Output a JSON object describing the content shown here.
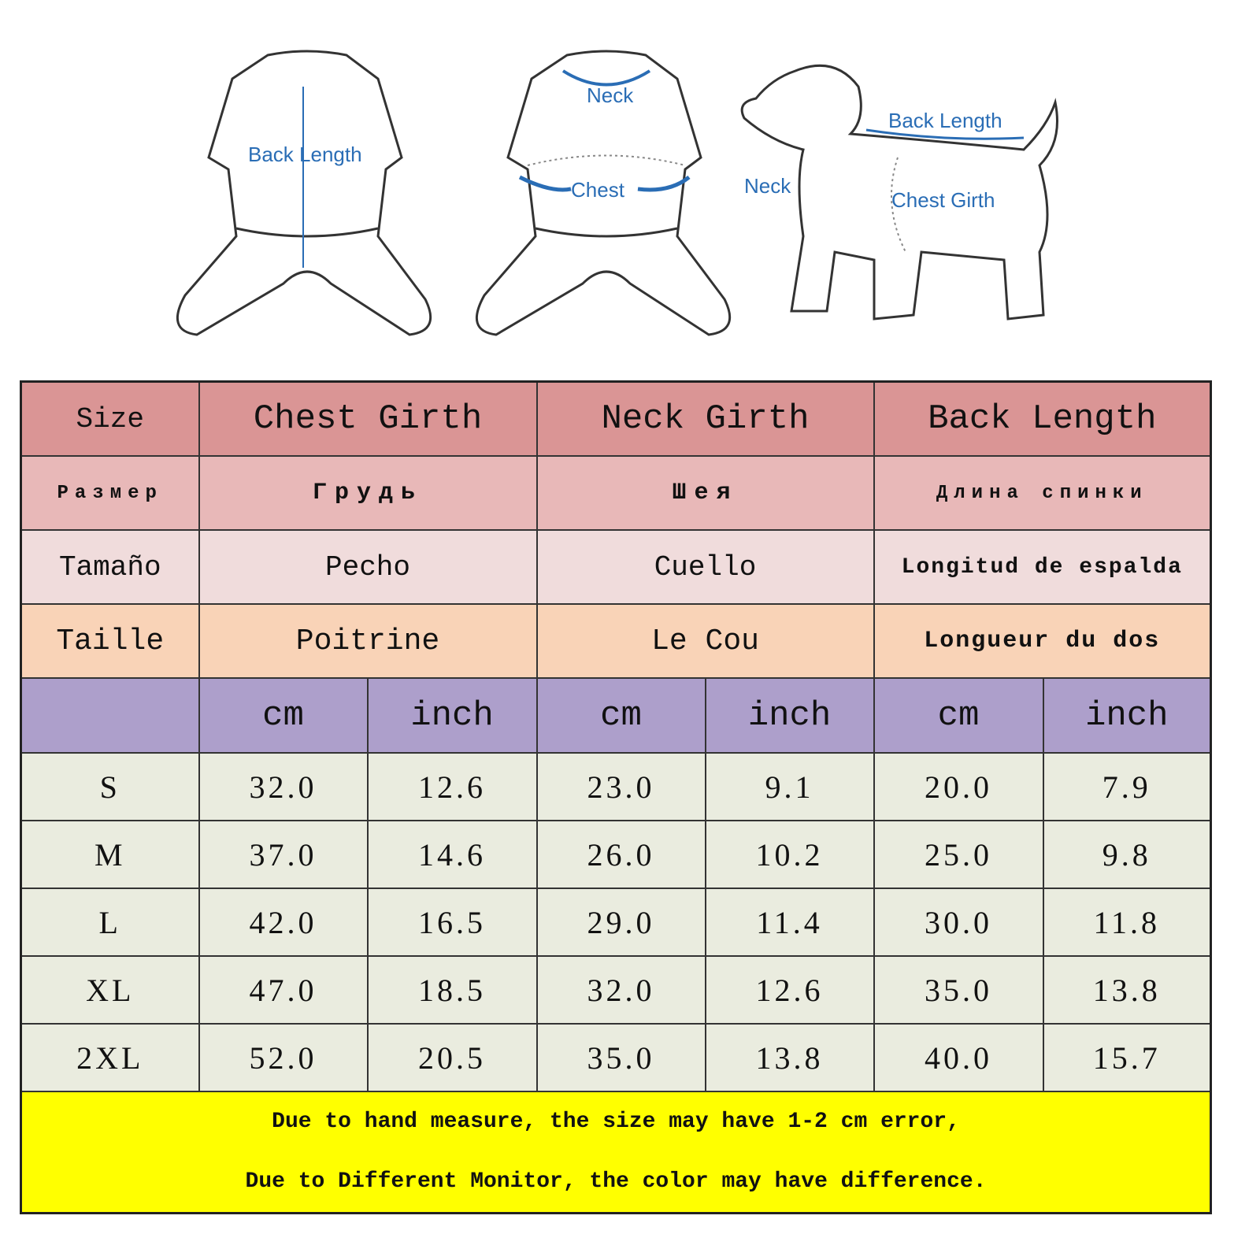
{
  "illustrations": {
    "back_view_label": "Back Length",
    "front_view_neck": "Neck",
    "front_view_chest": "Chest",
    "dog_back_length": "Back Length",
    "dog_neck": "Neck",
    "dog_chest_girth": "Chest Girth",
    "accent_color": "#2a6db5"
  },
  "table": {
    "header_en": [
      "Size",
      "Chest Girth",
      "Neck Girth",
      "Back Length"
    ],
    "header_ru": [
      "Размер",
      "Грудь",
      "Шея",
      "Длина спинки"
    ],
    "header_es": [
      "Tamaño",
      "Pecho",
      "Cuello",
      "Longitud de espalda"
    ],
    "header_fr": [
      "Taille",
      "Poitrine",
      "Le Cou",
      "Longueur du dos"
    ],
    "units": [
      "",
      "cm",
      "inch",
      "cm",
      "inch",
      "cm",
      "inch"
    ],
    "rows": [
      [
        "S",
        "32.0",
        "12.6",
        "23.0",
        "9.1",
        "20.0",
        "7.9"
      ],
      [
        "M",
        "37.0",
        "14.6",
        "26.0",
        "10.2",
        "25.0",
        "9.8"
      ],
      [
        "L",
        "42.0",
        "16.5",
        "29.0",
        "11.4",
        "30.0",
        "11.8"
      ],
      [
        "XL",
        "47.0",
        "18.5",
        "32.0",
        "12.6",
        "35.0",
        "13.8"
      ],
      [
        "2XL",
        "52.0",
        "20.5",
        "35.0",
        "13.8",
        "40.0",
        "15.7"
      ]
    ],
    "colors": {
      "en": "#da9595",
      "ru": "#e8b8b8",
      "es": "#f0dcdc",
      "fr": "#f9d3b7",
      "units": "#ad9fcb",
      "data": "#eaecdf",
      "note": "#ffff00"
    }
  },
  "notes": [
    "Due to hand measure, the size may have 1-2 cm error,",
    "Due to Different Monitor, the color may have difference."
  ]
}
